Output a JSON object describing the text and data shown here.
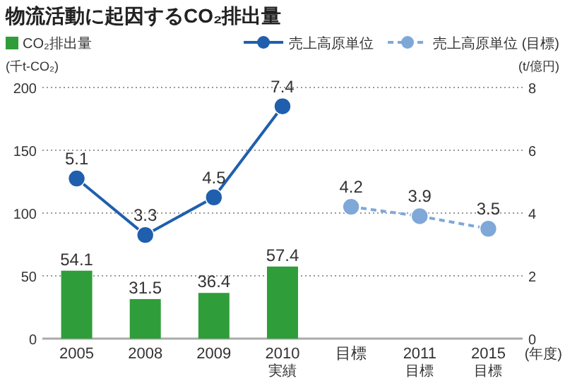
{
  "chart_data": {
    "type": "bar",
    "title": "物流活動に起因するCO₂排出量",
    "categories": [
      "2005",
      "2008",
      "2009",
      "2010\n実績",
      "目標",
      "2011\n目標",
      "2015\n目標"
    ],
    "series": [
      {
        "name": "CO₂排出量",
        "color": "#2f9e3a",
        "values": [
          54.1,
          31.5,
          36.4,
          57.4,
          null,
          null,
          null
        ]
      },
      {
        "name": "売上高原単位",
        "type": "line",
        "axis": "y2",
        "color": "#1f5fae",
        "line_style": "solid",
        "values": [
          5.1,
          3.3,
          4.5,
          7.4,
          null,
          null,
          null
        ]
      },
      {
        "name": "売上高原単位 (目標)",
        "type": "line",
        "axis": "y2",
        "color": "#7fa8d8",
        "line_style": "dashed",
        "values": [
          null,
          null,
          null,
          null,
          4.2,
          3.9,
          3.5
        ]
      }
    ],
    "ylim": [
      0,
      200
    ],
    "yticks": [
      0,
      50,
      100,
      150,
      200
    ],
    "y2lim": [
      0,
      8
    ],
    "y2ticks": [
      0,
      2,
      4,
      6,
      8
    ],
    "ylabel": "(千t-CO₂)",
    "y2label": "(t/億円)",
    "xlabel": "(年度)",
    "grid": "y",
    "legend": "top",
    "marker": "circle",
    "data_labels": true
  }
}
